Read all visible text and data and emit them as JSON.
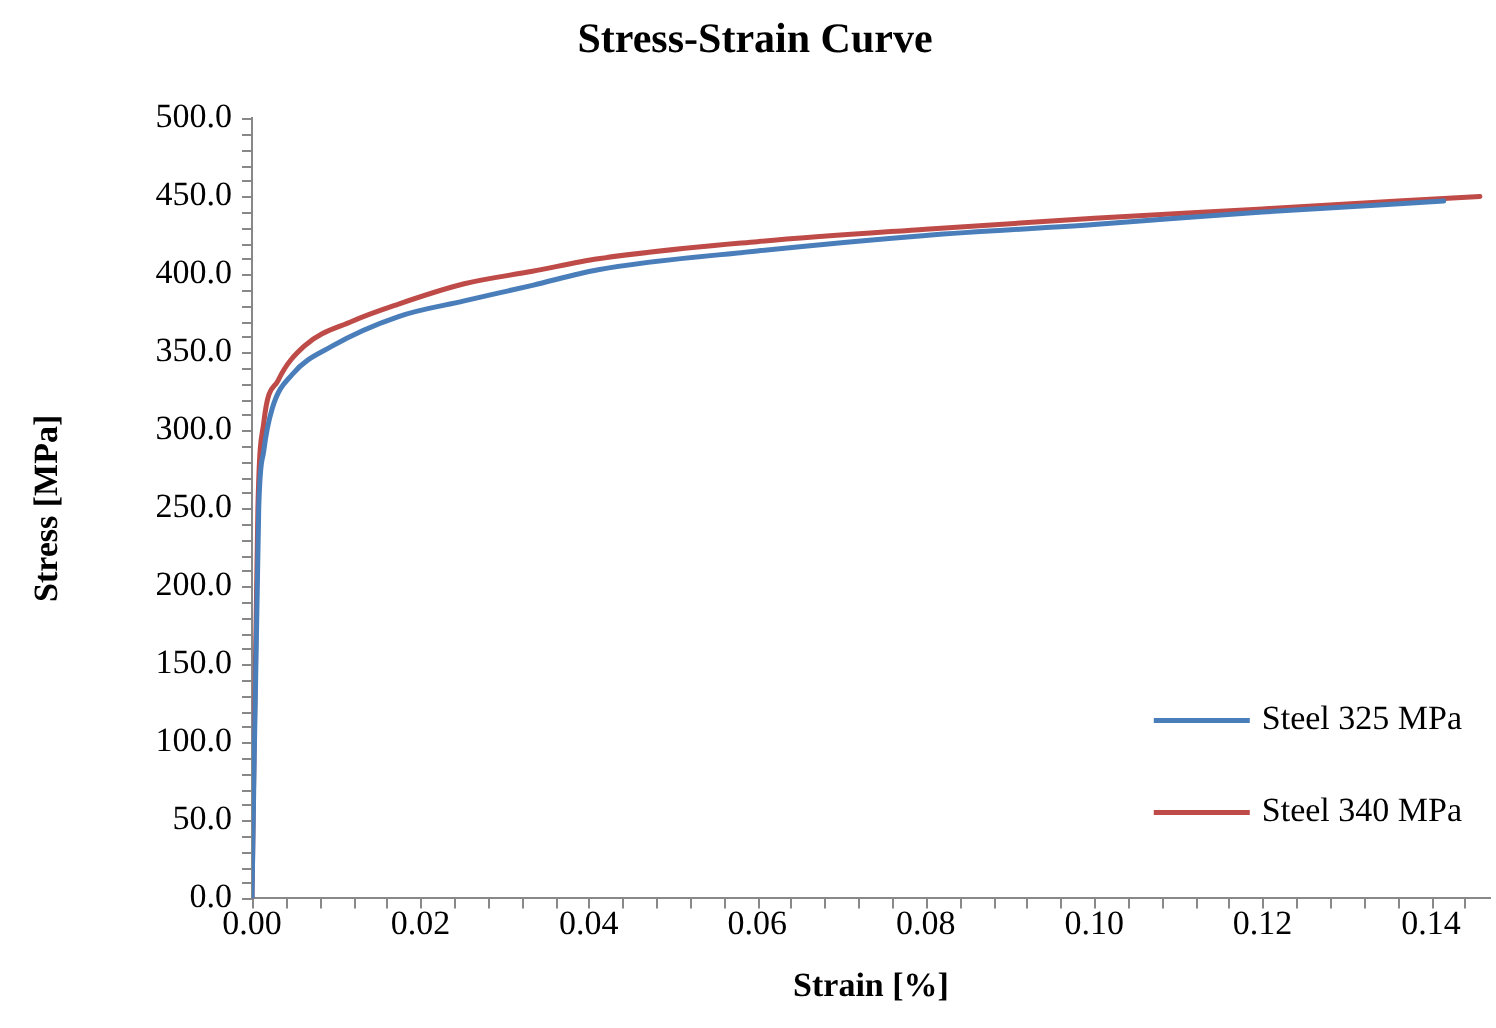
{
  "chart_data": {
    "type": "line",
    "title": "Stress-Strain Curve",
    "xlabel": "Strain [%]",
    "ylabel": "Stress [MPa]",
    "xlim": [
      0,
      0.147
    ],
    "ylim": [
      0,
      500
    ],
    "xticks": [
      {
        "value": 0,
        "label": "0.00"
      },
      {
        "value": 0.004,
        "label": null
      },
      {
        "value": 0.008,
        "label": null
      },
      {
        "value": 0.012,
        "label": null
      },
      {
        "value": 0.016,
        "label": null
      },
      {
        "value": 0.02,
        "label": "0.02"
      },
      {
        "value": 0.024,
        "label": null
      },
      {
        "value": 0.028,
        "label": null
      },
      {
        "value": 0.032,
        "label": null
      },
      {
        "value": 0.036,
        "label": null
      },
      {
        "value": 0.04,
        "label": "0.04"
      },
      {
        "value": 0.044,
        "label": null
      },
      {
        "value": 0.048,
        "label": null
      },
      {
        "value": 0.052,
        "label": null
      },
      {
        "value": 0.056,
        "label": null
      },
      {
        "value": 0.06,
        "label": "0.06"
      },
      {
        "value": 0.064,
        "label": null
      },
      {
        "value": 0.068,
        "label": null
      },
      {
        "value": 0.072,
        "label": null
      },
      {
        "value": 0.076,
        "label": null
      },
      {
        "value": 0.08,
        "label": "0.08"
      },
      {
        "value": 0.084,
        "label": null
      },
      {
        "value": 0.088,
        "label": null
      },
      {
        "value": 0.092,
        "label": null
      },
      {
        "value": 0.096,
        "label": null
      },
      {
        "value": 0.1,
        "label": "0.10"
      },
      {
        "value": 0.104,
        "label": null
      },
      {
        "value": 0.108,
        "label": null
      },
      {
        "value": 0.112,
        "label": null
      },
      {
        "value": 0.116,
        "label": null
      },
      {
        "value": 0.12,
        "label": "0.12"
      },
      {
        "value": 0.124,
        "label": null
      },
      {
        "value": 0.128,
        "label": null
      },
      {
        "value": 0.132,
        "label": null
      },
      {
        "value": 0.136,
        "label": null
      },
      {
        "value": 0.14,
        "label": "0.14"
      },
      {
        "value": 0.144,
        "label": null
      }
    ],
    "yticks": [
      {
        "value": 0,
        "label": "0.0"
      },
      {
        "value": 10,
        "label": null
      },
      {
        "value": 20,
        "label": null
      },
      {
        "value": 30,
        "label": null
      },
      {
        "value": 40,
        "label": null
      },
      {
        "value": 50,
        "label": "50.0"
      },
      {
        "value": 60,
        "label": null
      },
      {
        "value": 70,
        "label": null
      },
      {
        "value": 80,
        "label": null
      },
      {
        "value": 90,
        "label": null
      },
      {
        "value": 100,
        "label": "100.0"
      },
      {
        "value": 110,
        "label": null
      },
      {
        "value": 120,
        "label": null
      },
      {
        "value": 130,
        "label": null
      },
      {
        "value": 140,
        "label": null
      },
      {
        "value": 150,
        "label": "150.0"
      },
      {
        "value": 160,
        "label": null
      },
      {
        "value": 170,
        "label": null
      },
      {
        "value": 180,
        "label": null
      },
      {
        "value": 190,
        "label": null
      },
      {
        "value": 200,
        "label": "200.0"
      },
      {
        "value": 210,
        "label": null
      },
      {
        "value": 220,
        "label": null
      },
      {
        "value": 230,
        "label": null
      },
      {
        "value": 240,
        "label": null
      },
      {
        "value": 250,
        "label": "250.0"
      },
      {
        "value": 260,
        "label": null
      },
      {
        "value": 270,
        "label": null
      },
      {
        "value": 280,
        "label": null
      },
      {
        "value": 290,
        "label": null
      },
      {
        "value": 300,
        "label": "300.0"
      },
      {
        "value": 310,
        "label": null
      },
      {
        "value": 320,
        "label": null
      },
      {
        "value": 330,
        "label": null
      },
      {
        "value": 340,
        "label": null
      },
      {
        "value": 350,
        "label": "350.0"
      },
      {
        "value": 360,
        "label": null
      },
      {
        "value": 370,
        "label": null
      },
      {
        "value": 380,
        "label": null
      },
      {
        "value": 390,
        "label": null
      },
      {
        "value": 400,
        "label": "400.0"
      },
      {
        "value": 410,
        "label": null
      },
      {
        "value": 420,
        "label": null
      },
      {
        "value": 430,
        "label": null
      },
      {
        "value": 440,
        "label": null
      },
      {
        "value": 450,
        "label": "450.0"
      },
      {
        "value": 460,
        "label": null
      },
      {
        "value": 470,
        "label": null
      },
      {
        "value": 480,
        "label": null
      },
      {
        "value": 490,
        "label": null
      },
      {
        "value": 500,
        "label": "500.0"
      }
    ],
    "grid": false,
    "legend": "bottom right",
    "marker": "none",
    "line_style": "solid",
    "series": [
      {
        "name": "Steel 325 MPa",
        "color": "#4a7ebb",
        "x": [
          0,
          0.0008,
          0.0014,
          0.0024,
          0.0048,
          0.0095,
          0.0174,
          0.0252,
          0.0333,
          0.0411,
          0.06,
          0.08,
          0.1,
          0.12,
          0.1415
        ],
        "values": [
          0,
          250,
          287,
          314,
          336,
          354,
          373,
          383,
          393,
          403,
          415,
          425,
          432,
          440,
          447
        ]
      },
      {
        "name": "Steel 340 MPa",
        "color": "#be4b48",
        "x": [
          0,
          0.0007,
          0.0014,
          0.0031,
          0.0062,
          0.0119,
          0.0174,
          0.0252,
          0.0333,
          0.0411,
          0.06,
          0.08,
          0.1,
          0.12,
          0.1458
        ],
        "values": [
          0,
          250,
          305,
          332,
          354,
          370,
          381,
          394,
          402,
          410,
          421,
          429,
          436,
          442,
          450
        ]
      }
    ]
  }
}
